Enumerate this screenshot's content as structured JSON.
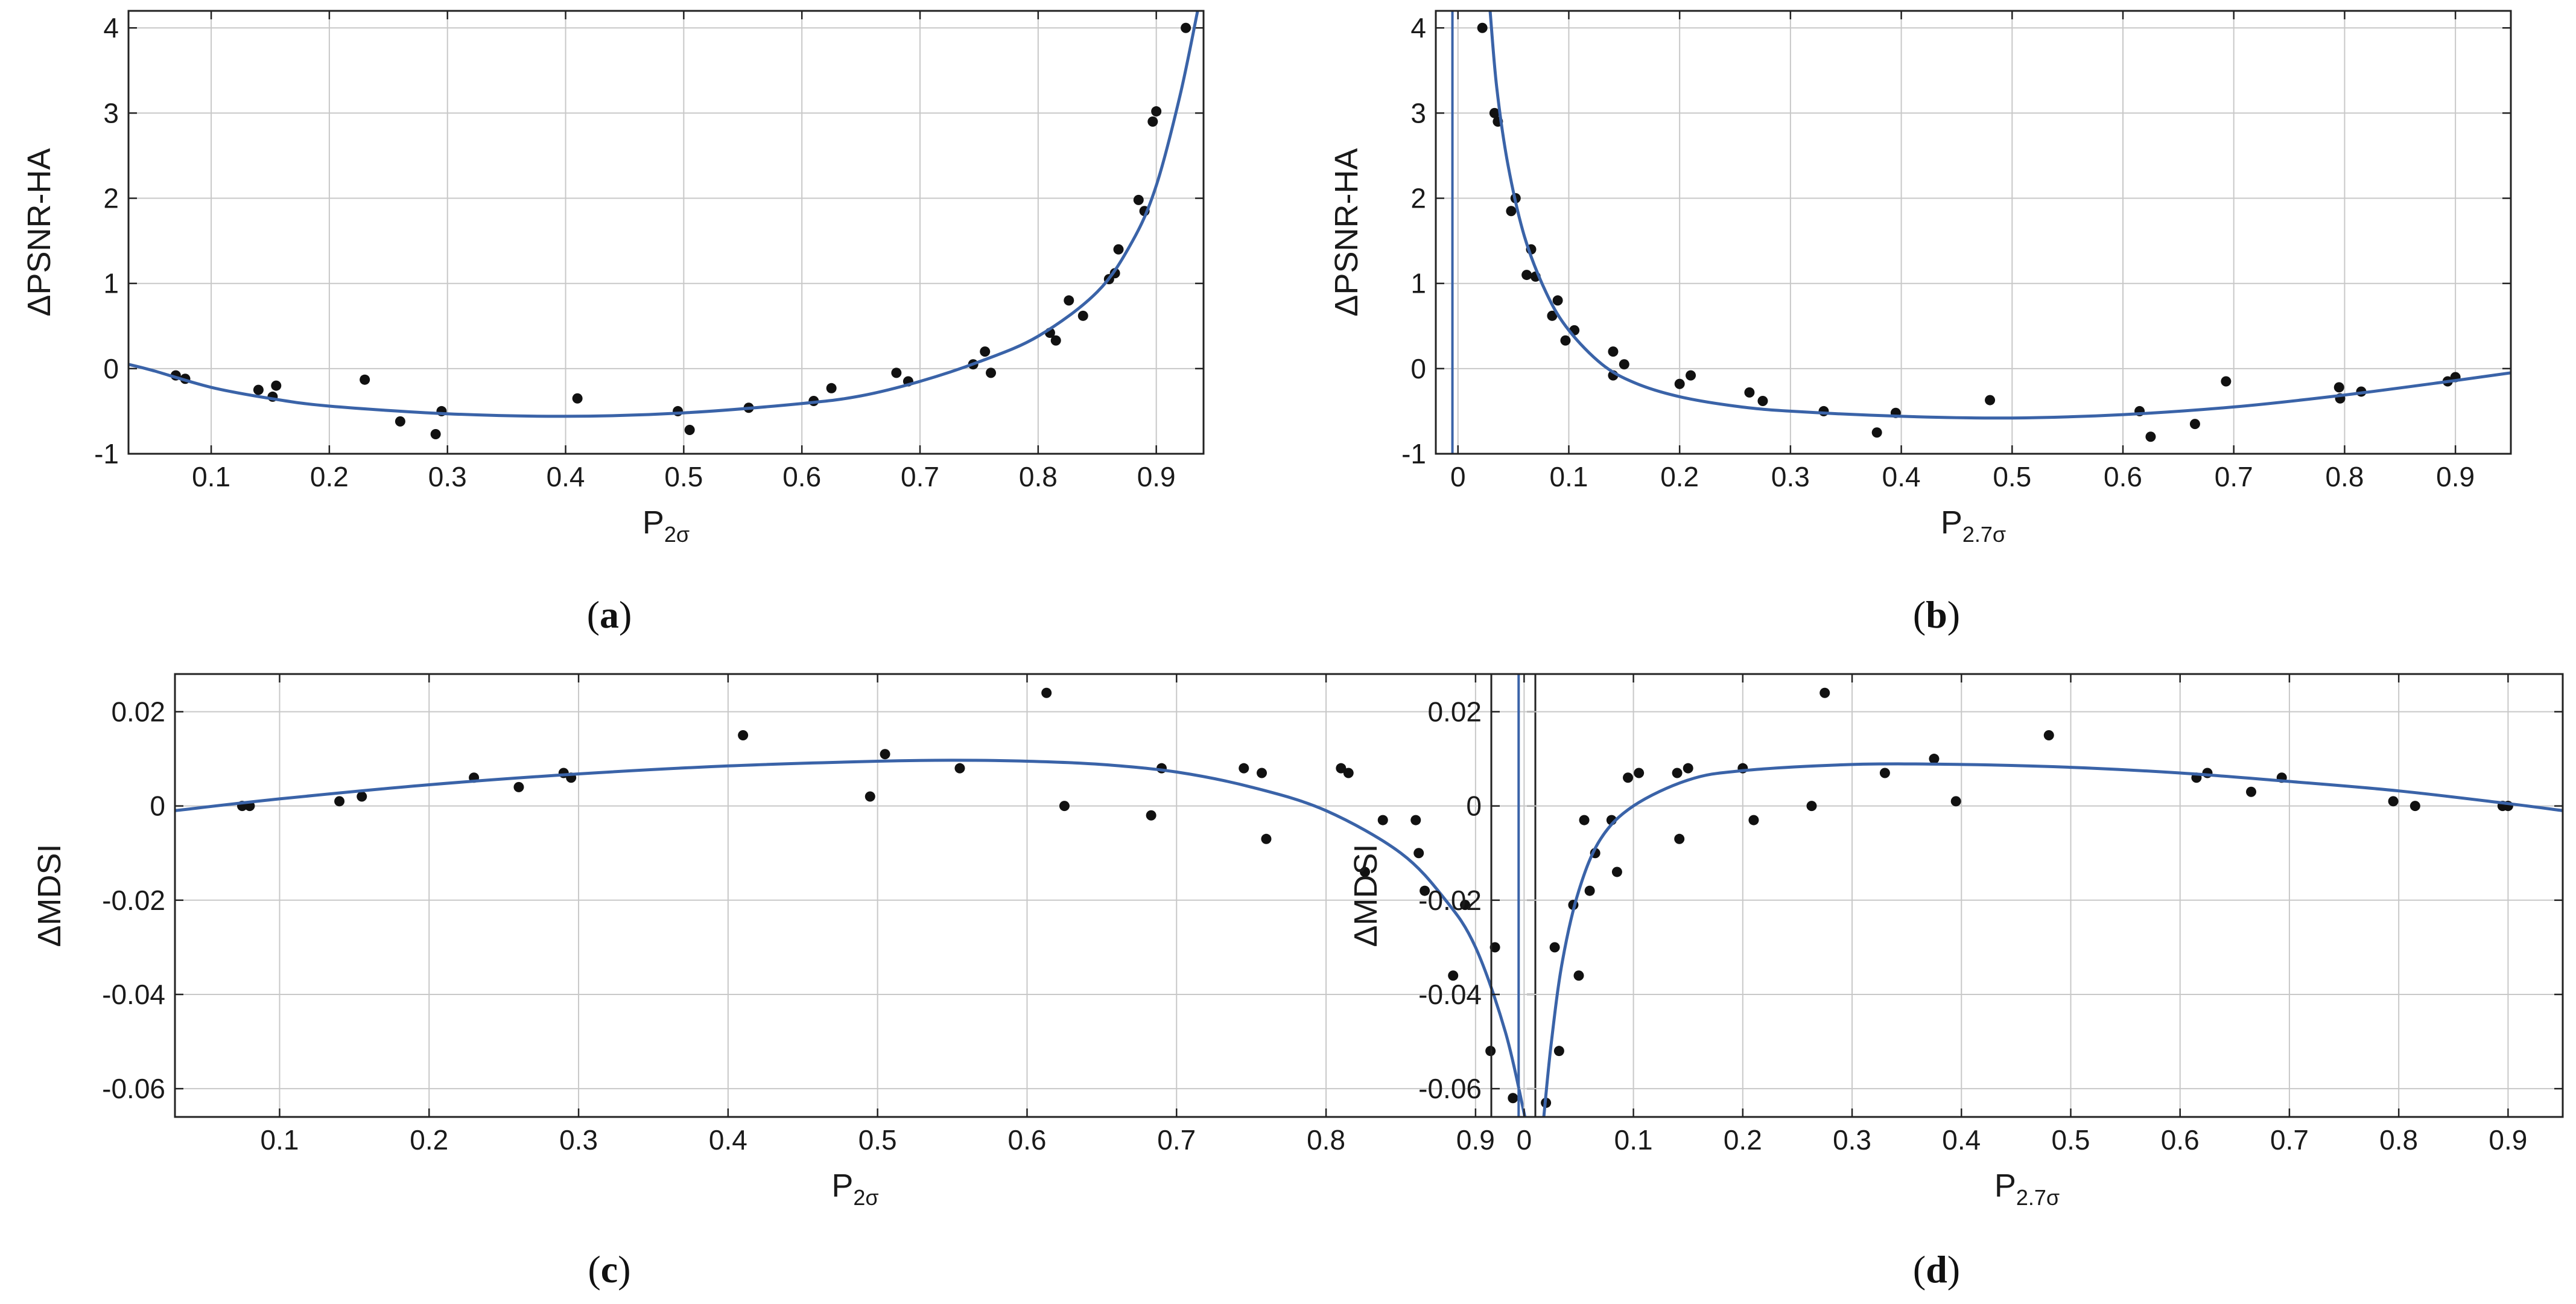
{
  "colors": {
    "curve": "#3a63a8",
    "point": "#111111",
    "grid": "#c8c8c8",
    "frame": "#222222",
    "background": "#ffffff"
  },
  "chart_data": [
    {
      "id": "a",
      "type": "scatter",
      "panel_label": "a",
      "xlabel": {
        "main": "P",
        "sub": "2σ"
      },
      "ylabel": "ΔPSNR-HA",
      "xlim": [
        0.03,
        0.94
      ],
      "ylim": [
        -1.0,
        4.2
      ],
      "xticks": [
        0.1,
        0.2,
        0.3,
        0.4,
        0.5,
        0.6,
        0.7,
        0.8,
        0.9
      ],
      "xtick_labels": [
        "0.1",
        "0.2",
        "0.3",
        "0.4",
        "0.5",
        "0.6",
        "0.7",
        "0.8",
        "0.9"
      ],
      "yticks": [
        -1,
        0,
        1,
        2,
        3,
        4
      ],
      "ytick_labels": [
        "-1",
        "0",
        "1",
        "2",
        "3",
        "4"
      ],
      "grid": true,
      "series": [
        {
          "name": "measured",
          "style": "points",
          "points": [
            [
              0.07,
              -0.08
            ],
            [
              0.078,
              -0.12
            ],
            [
              0.14,
              -0.25
            ],
            [
              0.152,
              -0.33
            ],
            [
              0.155,
              -0.2
            ],
            [
              0.23,
              -0.13
            ],
            [
              0.26,
              -0.62
            ],
            [
              0.29,
              -0.77
            ],
            [
              0.295,
              -0.5
            ],
            [
              0.41,
              -0.35
            ],
            [
              0.495,
              -0.5
            ],
            [
              0.505,
              -0.72
            ],
            [
              0.555,
              -0.46
            ],
            [
              0.61,
              -0.38
            ],
            [
              0.625,
              -0.23
            ],
            [
              0.68,
              -0.05
            ],
            [
              0.69,
              -0.15
            ],
            [
              0.745,
              0.05
            ],
            [
              0.755,
              0.2
            ],
            [
              0.76,
              -0.05
            ],
            [
              0.81,
              0.42
            ],
            [
              0.815,
              0.33
            ],
            [
              0.826,
              0.8
            ],
            [
              0.838,
              0.62
            ],
            [
              0.86,
              1.05
            ],
            [
              0.865,
              1.12
            ],
            [
              0.868,
              1.4
            ],
            [
              0.885,
              1.98
            ],
            [
              0.89,
              1.85
            ],
            [
              0.897,
              2.9
            ],
            [
              0.9,
              3.02
            ],
            [
              0.925,
              4.0
            ]
          ]
        },
        {
          "name": "fit",
          "style": "curve",
          "points": [
            [
              0.03,
              0.05
            ],
            [
              0.05,
              -0.02
            ],
            [
              0.1,
              -0.22
            ],
            [
              0.15,
              -0.35
            ],
            [
              0.2,
              -0.44
            ],
            [
              0.3,
              -0.53
            ],
            [
              0.4,
              -0.56
            ],
            [
              0.5,
              -0.52
            ],
            [
              0.6,
              -0.41
            ],
            [
              0.65,
              -0.32
            ],
            [
              0.7,
              -0.15
            ],
            [
              0.75,
              0.08
            ],
            [
              0.8,
              0.38
            ],
            [
              0.85,
              0.9
            ],
            [
              0.88,
              1.5
            ],
            [
              0.9,
              2.15
            ],
            [
              0.92,
              3.2
            ],
            [
              0.935,
              4.2
            ]
          ]
        }
      ]
    },
    {
      "id": "b",
      "type": "scatter",
      "panel_label": "b",
      "xlabel": {
        "main": "P",
        "sub": "2.7σ"
      },
      "ylabel": "ΔPSNR-HA",
      "xlim": [
        -0.02,
        0.95
      ],
      "ylim": [
        -1.0,
        4.2
      ],
      "xticks": [
        0,
        0.1,
        0.2,
        0.3,
        0.4,
        0.5,
        0.6,
        0.7,
        0.8,
        0.9
      ],
      "xtick_labels": [
        "0",
        "0.1",
        "0.2",
        "0.3",
        "0.4",
        "0.5",
        "0.6",
        "0.7",
        "0.8",
        "0.9"
      ],
      "yticks": [
        -1,
        0,
        1,
        2,
        3,
        4
      ],
      "ytick_labels": [
        "-1",
        "0",
        "1",
        "2",
        "3",
        "4"
      ],
      "grid": true,
      "series": [
        {
          "name": "measured",
          "style": "points",
          "points": [
            [
              0.022,
              4.0
            ],
            [
              0.033,
              3.0
            ],
            [
              0.036,
              2.9
            ],
            [
              0.048,
              1.85
            ],
            [
              0.052,
              2.0
            ],
            [
              0.062,
              1.1
            ],
            [
              0.066,
              1.4
            ],
            [
              0.07,
              1.08
            ],
            [
              0.085,
              0.62
            ],
            [
              0.09,
              0.8
            ],
            [
              0.097,
              0.33
            ],
            [
              0.105,
              0.45
            ],
            [
              0.14,
              0.2
            ],
            [
              0.14,
              -0.08
            ],
            [
              0.15,
              0.05
            ],
            [
              0.2,
              -0.18
            ],
            [
              0.21,
              -0.08
            ],
            [
              0.263,
              -0.28
            ],
            [
              0.275,
              -0.38
            ],
            [
              0.33,
              -0.5
            ],
            [
              0.378,
              -0.75
            ],
            [
              0.395,
              -0.52
            ],
            [
              0.48,
              -0.37
            ],
            [
              0.615,
              -0.5
            ],
            [
              0.625,
              -0.8
            ],
            [
              0.665,
              -0.65
            ],
            [
              0.693,
              -0.15
            ],
            [
              0.795,
              -0.22
            ],
            [
              0.796,
              -0.35
            ],
            [
              0.815,
              -0.27
            ],
            [
              0.893,
              -0.15
            ],
            [
              0.9,
              -0.1
            ]
          ]
        },
        {
          "name": "fit",
          "style": "curve",
          "points": [
            [
              0.029,
              4.2
            ],
            [
              0.035,
              3.3
            ],
            [
              0.045,
              2.4
            ],
            [
              0.06,
              1.55
            ],
            [
              0.08,
              0.88
            ],
            [
              0.1,
              0.45
            ],
            [
              0.13,
              0.05
            ],
            [
              0.16,
              -0.17
            ],
            [
              0.2,
              -0.33
            ],
            [
              0.25,
              -0.44
            ],
            [
              0.3,
              -0.5
            ],
            [
              0.4,
              -0.56
            ],
            [
              0.5,
              -0.58
            ],
            [
              0.6,
              -0.54
            ],
            [
              0.7,
              -0.45
            ],
            [
              0.8,
              -0.31
            ],
            [
              0.9,
              -0.14
            ],
            [
              0.95,
              -0.05
            ]
          ]
        },
        {
          "name": "asymptote",
          "style": "vline",
          "x": -0.005
        }
      ]
    },
    {
      "id": "c",
      "type": "scatter",
      "panel_label": "c",
      "xlabel": {
        "main": "P",
        "sub": "2σ"
      },
      "ylabel": "ΔMDSI",
      "xlim": [
        0.03,
        0.94
      ],
      "ylim": [
        -0.066,
        0.028
      ],
      "xticks": [
        0.1,
        0.2,
        0.3,
        0.4,
        0.5,
        0.6,
        0.7,
        0.8,
        0.9
      ],
      "xtick_labels": [
        "0.1",
        "0.2",
        "0.3",
        "0.4",
        "0.5",
        "0.6",
        "0.7",
        "0.8",
        "0.9"
      ],
      "yticks": [
        -0.06,
        -0.04,
        -0.02,
        0,
        0.02
      ],
      "ytick_labels": [
        "-0.06",
        "-0.04",
        "-0.02",
        "0",
        "0.02"
      ],
      "grid": true,
      "series": [
        {
          "name": "measured",
          "style": "points",
          "points": [
            [
              0.075,
              0.0
            ],
            [
              0.08,
              0.0
            ],
            [
              0.14,
              0.001
            ],
            [
              0.155,
              0.002
            ],
            [
              0.23,
              0.006
            ],
            [
              0.26,
              0.004
            ],
            [
              0.29,
              0.007
            ],
            [
              0.295,
              0.006
            ],
            [
              0.41,
              0.015
            ],
            [
              0.495,
              0.002
            ],
            [
              0.505,
              0.011
            ],
            [
              0.555,
              0.008
            ],
            [
              0.613,
              0.024
            ],
            [
              0.625,
              0.0
            ],
            [
              0.683,
              -0.002
            ],
            [
              0.69,
              0.008
            ],
            [
              0.745,
              0.008
            ],
            [
              0.757,
              0.007
            ],
            [
              0.76,
              -0.007
            ],
            [
              0.81,
              0.008
            ],
            [
              0.815,
              0.007
            ],
            [
              0.826,
              -0.014
            ],
            [
              0.838,
              -0.003
            ],
            [
              0.86,
              -0.003
            ],
            [
              0.862,
              -0.01
            ],
            [
              0.866,
              -0.018
            ],
            [
              0.885,
              -0.036
            ],
            [
              0.893,
              -0.021
            ],
            [
              0.91,
              -0.052
            ],
            [
              0.913,
              -0.03
            ],
            [
              0.925,
              -0.062
            ]
          ]
        },
        {
          "name": "fit",
          "style": "curve",
          "points": [
            [
              0.03,
              -0.001
            ],
            [
              0.1,
              0.0015
            ],
            [
              0.2,
              0.0045
            ],
            [
              0.3,
              0.0068
            ],
            [
              0.4,
              0.0085
            ],
            [
              0.5,
              0.0095
            ],
            [
              0.55,
              0.0097
            ],
            [
              0.6,
              0.0095
            ],
            [
              0.65,
              0.0088
            ],
            [
              0.7,
              0.0072
            ],
            [
              0.75,
              0.004
            ],
            [
              0.8,
              -0.001
            ],
            [
              0.85,
              -0.01
            ],
            [
              0.88,
              -0.02
            ],
            [
              0.9,
              -0.03
            ],
            [
              0.92,
              -0.048
            ],
            [
              0.933,
              -0.066
            ]
          ]
        }
      ]
    },
    {
      "id": "d",
      "type": "scatter",
      "panel_label": "d",
      "xlabel": {
        "main": "P",
        "sub": "2.7σ"
      },
      "ylabel": "ΔMDSI",
      "xlim": [
        -0.03,
        0.95
      ],
      "ylim": [
        -0.066,
        0.028
      ],
      "xticks": [
        0,
        0.1,
        0.2,
        0.3,
        0.4,
        0.5,
        0.6,
        0.7,
        0.8,
        0.9
      ],
      "xtick_labels": [
        "0",
        "0.1",
        "0.2",
        "0.3",
        "0.4",
        "0.5",
        "0.6",
        "0.7",
        "0.8",
        "0.9"
      ],
      "yticks": [
        -0.06,
        -0.04,
        -0.02,
        0,
        0.02
      ],
      "ytick_labels": [
        "-0.06",
        "-0.04",
        "-0.02",
        "0",
        "0.02"
      ],
      "grid": true,
      "series": [
        {
          "name": "measured",
          "style": "points",
          "points": [
            [
              0.02,
              -0.063
            ],
            [
              0.028,
              -0.03
            ],
            [
              0.032,
              -0.052
            ],
            [
              0.045,
              -0.021
            ],
            [
              0.05,
              -0.036
            ],
            [
              0.055,
              -0.003
            ],
            [
              0.06,
              -0.018
            ],
            [
              0.065,
              -0.01
            ],
            [
              0.08,
              -0.003
            ],
            [
              0.085,
              -0.014
            ],
            [
              0.095,
              0.006
            ],
            [
              0.105,
              0.007
            ],
            [
              0.14,
              0.007
            ],
            [
              0.142,
              -0.007
            ],
            [
              0.15,
              0.008
            ],
            [
              0.2,
              0.008
            ],
            [
              0.21,
              -0.003
            ],
            [
              0.263,
              0.0
            ],
            [
              0.275,
              0.024
            ],
            [
              0.33,
              0.007
            ],
            [
              0.375,
              0.01
            ],
            [
              0.395,
              0.001
            ],
            [
              0.48,
              0.015
            ],
            [
              0.615,
              0.006
            ],
            [
              0.625,
              0.007
            ],
            [
              0.665,
              0.003
            ],
            [
              0.693,
              0.006
            ],
            [
              0.795,
              0.001
            ],
            [
              0.815,
              0.0
            ],
            [
              0.895,
              0.0
            ],
            [
              0.9,
              0.0
            ]
          ]
        },
        {
          "name": "fit",
          "style": "curve",
          "points": [
            [
              0.018,
              -0.066
            ],
            [
              0.025,
              -0.05
            ],
            [
              0.035,
              -0.033
            ],
            [
              0.05,
              -0.018
            ],
            [
              0.07,
              -0.007
            ],
            [
              0.1,
              0.0
            ],
            [
              0.15,
              0.0055
            ],
            [
              0.2,
              0.0075
            ],
            [
              0.3,
              0.0088
            ],
            [
              0.4,
              0.0088
            ],
            [
              0.5,
              0.0082
            ],
            [
              0.6,
              0.007
            ],
            [
              0.7,
              0.0052
            ],
            [
              0.8,
              0.0032
            ],
            [
              0.9,
              0.0005
            ],
            [
              0.95,
              -0.001
            ]
          ]
        },
        {
          "name": "asymptote",
          "style": "vline",
          "x": -0.005
        }
      ]
    }
  ]
}
